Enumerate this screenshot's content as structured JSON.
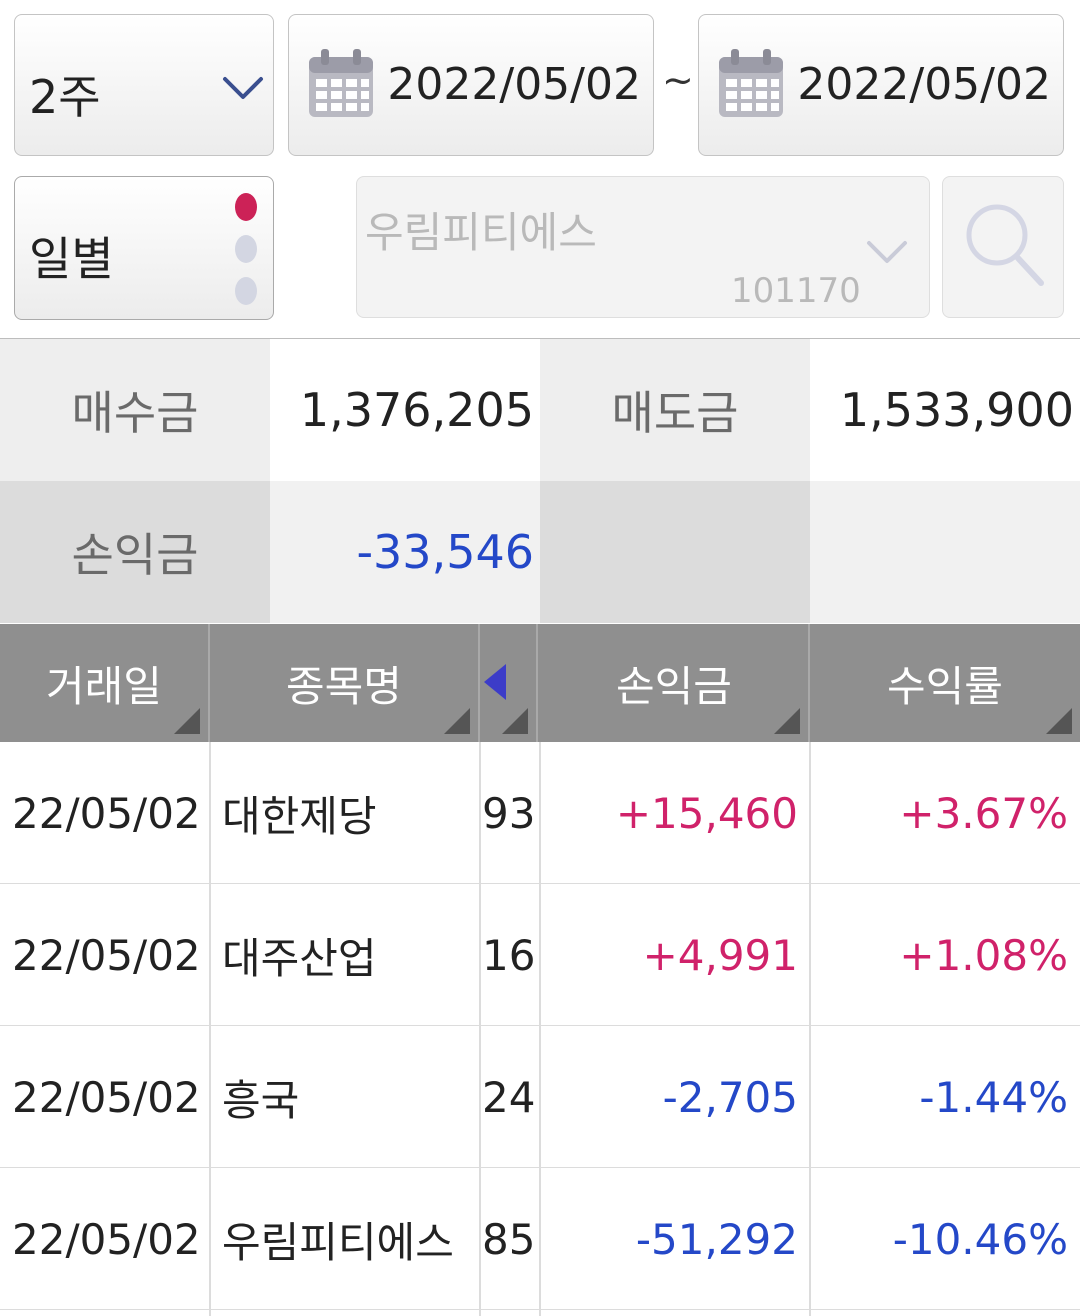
{
  "filters": {
    "period": "2주",
    "start_date": "2022/05/02",
    "separator": "~",
    "end_date": "2022/05/02",
    "view_mode": "일별",
    "stock_name": "우림피티에스",
    "stock_code": "101170",
    "icons": {
      "period": "chevron-down-icon",
      "date": "calendar-icon",
      "stock": "chevron-down-icon",
      "search": "search-icon"
    }
  },
  "summary": {
    "buy_label": "매수금",
    "buy_value": "1,376,205",
    "sell_label": "매도금",
    "sell_value": "1,533,900",
    "pl_label": "손익금",
    "pl_value": "-33,546"
  },
  "table": {
    "headers": [
      "거래일",
      "종목명",
      "손익금",
      "수익률"
    ],
    "rows": [
      {
        "date": "22/05/02",
        "name": "대한제당",
        "qty": "93",
        "pl": "+15,460",
        "rate": "+3.67%",
        "dir": "pos"
      },
      {
        "date": "22/05/02",
        "name": "대주산업",
        "qty": "16",
        "pl": "+4,991",
        "rate": "+1.08%",
        "dir": "pos"
      },
      {
        "date": "22/05/02",
        "name": "흥국",
        "qty": "24",
        "pl": "-2,705",
        "rate": "-1.44%",
        "dir": "neg"
      },
      {
        "date": "22/05/02",
        "name": "우림피티에스",
        "qty": "85",
        "pl": "-51,292",
        "rate": "-10.46%",
        "dir": "neg"
      }
    ]
  },
  "colors": {
    "positive": "#d0226a",
    "negative": "#2448c8",
    "header_bg": "#8f8f8f",
    "active_dot": "#cc2257"
  }
}
